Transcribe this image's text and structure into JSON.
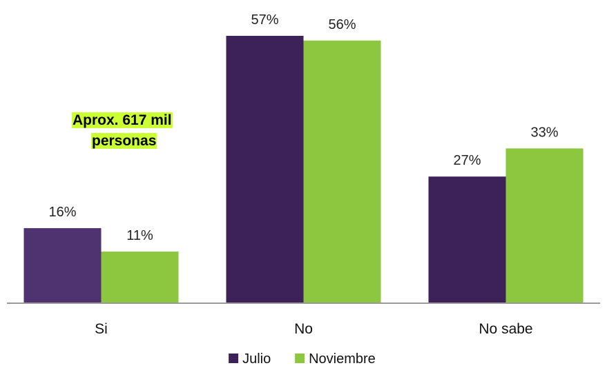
{
  "chart_data": {
    "type": "bar",
    "categories": [
      "Si",
      "No",
      "No sabe"
    ],
    "series": [
      {
        "name": "Julio",
        "values": [
          16,
          57,
          27
        ],
        "color": "#3d2159",
        "color_first": "#4f3270"
      },
      {
        "name": "Noviembre",
        "values": [
          11,
          56,
          33
        ],
        "color": "#8dc63f"
      }
    ],
    "value_suffix": "%",
    "ylim": [
      0,
      60
    ],
    "grid": false,
    "legend_position": "bottom",
    "annotation": {
      "line1": "Aprox. 617 mil",
      "line2": "personas",
      "highlight_color": "#ccff33"
    }
  }
}
